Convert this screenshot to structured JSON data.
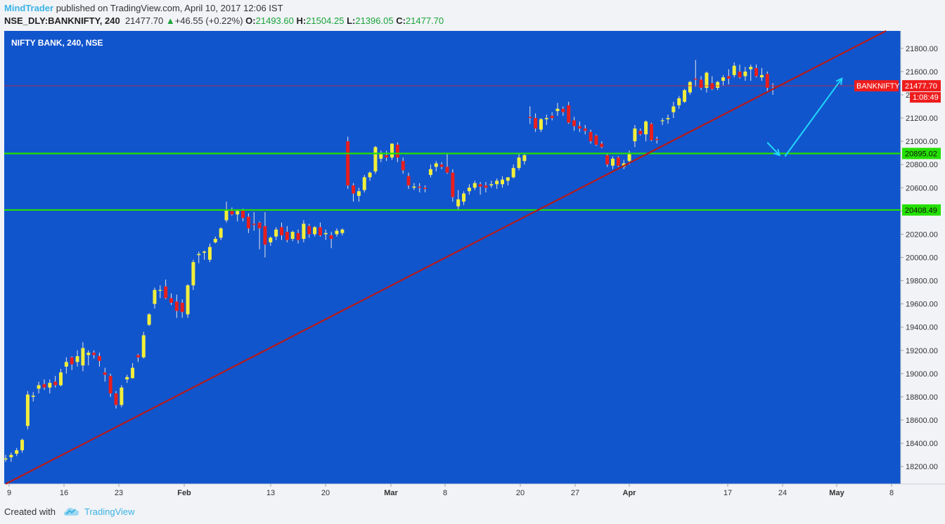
{
  "header": {
    "author": "MindTrader",
    "published_text": "published on TradingView.com, April 10, 2017 12:06 IST",
    "symbol": "NSE_DLY:BANKNIFTY, 240",
    "last": "21477.70",
    "change": "+46.55 (+0.22%)",
    "o_label": "O:",
    "o_value": "21493.60",
    "h_label": "H:",
    "h_value": "21504.25",
    "l_label": "L:",
    "l_value": "21396.05",
    "c_label": "C:",
    "c_value": "21477.70"
  },
  "chart_data": {
    "type": "candlestick",
    "title": "NIFTY BANK, 240, NSE",
    "ylim": [
      18050,
      21950
    ],
    "y_ticks": [
      "21800.00",
      "21600.00",
      "21400.00",
      "21200.00",
      "21000.00",
      "20800.00",
      "20600.00",
      "20400.00",
      "20200.00",
      "20000.00",
      "19800.00",
      "19600.00",
      "19400.00",
      "19200.00",
      "19000.00",
      "18800.00",
      "18600.00",
      "18400.00",
      "18200.00"
    ],
    "x_ticks": [
      "9",
      "16",
      "23",
      "Feb",
      "13",
      "20",
      "Mar",
      "8",
      "20",
      "27",
      "Apr",
      "17",
      "24",
      "May",
      "8"
    ],
    "candles": [
      [
        18260,
        18300,
        18240,
        18270
      ],
      [
        18280,
        18320,
        18240,
        18300
      ],
      [
        18310,
        18360,
        18290,
        18340
      ],
      [
        18340,
        18440,
        18320,
        18430
      ],
      [
        18550,
        18850,
        18520,
        18820
      ],
      [
        18800,
        18840,
        18760,
        18810
      ],
      [
        18870,
        18930,
        18830,
        18900
      ],
      [
        18910,
        18950,
        18860,
        18880
      ],
      [
        18880,
        18950,
        18830,
        18920
      ],
      [
        18930,
        18980,
        18880,
        18900
      ],
      [
        18900,
        19040,
        18890,
        19010
      ],
      [
        19060,
        19140,
        19000,
        19100
      ],
      [
        19140,
        19150,
        19030,
        19080
      ],
      [
        19100,
        19200,
        19060,
        19150
      ],
      [
        19070,
        19270,
        19020,
        19220
      ],
      [
        19160,
        19200,
        19070,
        19180
      ],
      [
        19180,
        19200,
        19130,
        19160
      ],
      [
        19150,
        19180,
        19060,
        19110
      ],
      [
        19010,
        19050,
        18930,
        18990
      ],
      [
        18980,
        19000,
        18800,
        18830
      ],
      [
        18830,
        18850,
        18700,
        18730
      ],
      [
        18730,
        18900,
        18710,
        18880
      ],
      [
        18950,
        18990,
        18920,
        18970
      ],
      [
        18960,
        19090,
        18960,
        19050
      ],
      [
        19160,
        19170,
        19100,
        19140
      ],
      [
        19140,
        19360,
        19130,
        19330
      ],
      [
        19420,
        19520,
        19410,
        19510
      ],
      [
        19600,
        19740,
        19560,
        19720
      ],
      [
        19720,
        19760,
        19650,
        19720
      ],
      [
        19750,
        19810,
        19640,
        19650
      ],
      [
        19650,
        19690,
        19590,
        19610
      ],
      [
        19620,
        19680,
        19480,
        19540
      ],
      [
        19610,
        19640,
        19480,
        19530
      ],
      [
        19510,
        19770,
        19480,
        19760
      ],
      [
        19760,
        19980,
        19720,
        19960
      ],
      [
        20020,
        20050,
        19950,
        20030
      ],
      [
        20040,
        20060,
        19980,
        20050
      ],
      [
        19980,
        20120,
        19960,
        20090
      ],
      [
        20130,
        20180,
        20120,
        20160
      ],
      [
        20170,
        20260,
        20150,
        20250
      ],
      [
        20320,
        20480,
        20300,
        20410
      ],
      [
        20400,
        20430,
        20360,
        20370
      ],
      [
        20370,
        20410,
        20310,
        20400
      ],
      [
        20410,
        20420,
        20310,
        20340
      ],
      [
        20350,
        20380,
        20210,
        20250
      ],
      [
        20290,
        20390,
        20230,
        20280
      ],
      [
        20300,
        20310,
        20070,
        20250
      ],
      [
        20270,
        20390,
        20000,
        20110
      ],
      [
        20130,
        20180,
        20100,
        20170
      ],
      [
        20180,
        20260,
        20150,
        20240
      ],
      [
        20260,
        20300,
        20150,
        20190
      ],
      [
        20220,
        20270,
        20130,
        20150
      ],
      [
        20160,
        20230,
        20140,
        20220
      ],
      [
        20210,
        20240,
        20120,
        20150
      ],
      [
        20160,
        20320,
        20130,
        20290
      ],
      [
        20270,
        20290,
        20170,
        20200
      ],
      [
        20200,
        20270,
        20180,
        20260
      ],
      [
        20260,
        20300,
        20180,
        20190
      ],
      [
        20200,
        20240,
        20150,
        20210
      ],
      [
        20190,
        20220,
        20080,
        20160
      ],
      [
        20200,
        20250,
        20180,
        20230
      ],
      [
        20210,
        20250,
        20190,
        20240
      ],
      [
        21000,
        21040,
        20590,
        20620
      ],
      [
        20620,
        20640,
        20480,
        20550
      ],
      [
        20530,
        20600,
        20480,
        20570
      ],
      [
        20580,
        20710,
        20560,
        20690
      ],
      [
        20690,
        20740,
        20660,
        20730
      ],
      [
        20740,
        20960,
        20720,
        20950
      ],
      [
        20850,
        20920,
        20820,
        20900
      ],
      [
        20880,
        20920,
        20830,
        20860
      ],
      [
        20860,
        20980,
        20840,
        20980
      ],
      [
        20970,
        20990,
        20820,
        20860
      ],
      [
        20830,
        20860,
        20720,
        20750
      ],
      [
        20700,
        20730,
        20590,
        20620
      ],
      [
        20600,
        20640,
        20580,
        20610
      ],
      [
        20610,
        20640,
        20560,
        20600
      ],
      [
        20600,
        20620,
        20560,
        20590
      ],
      [
        20710,
        20800,
        20690,
        20760
      ],
      [
        20780,
        20830,
        20740,
        20810
      ],
      [
        20800,
        20820,
        20760,
        20780
      ],
      [
        20780,
        20900,
        20720,
        20730
      ],
      [
        20730,
        20760,
        20480,
        20520
      ],
      [
        20440,
        20580,
        20410,
        20500
      ],
      [
        20480,
        20570,
        20450,
        20550
      ],
      [
        20570,
        20630,
        20540,
        20600
      ],
      [
        20600,
        20660,
        20580,
        20640
      ],
      [
        20630,
        20650,
        20540,
        20610
      ],
      [
        20620,
        20650,
        20560,
        20600
      ],
      [
        20620,
        20660,
        20600,
        20630
      ],
      [
        20630,
        20680,
        20590,
        20660
      ],
      [
        20630,
        20700,
        20600,
        20670
      ],
      [
        20660,
        20690,
        20620,
        20690
      ],
      [
        20690,
        20800,
        20680,
        20770
      ],
      [
        20770,
        20890,
        20750,
        20860
      ],
      [
        20830,
        20890,
        20800,
        20880
      ],
      [
        21210,
        21300,
        21150,
        21200
      ],
      [
        21200,
        21240,
        21080,
        21110
      ],
      [
        21100,
        21200,
        21080,
        21190
      ],
      [
        21190,
        21230,
        21140,
        21200
      ],
      [
        21220,
        21250,
        21180,
        21200
      ],
      [
        21260,
        21330,
        21220,
        21280
      ],
      [
        21280,
        21300,
        21220,
        21250
      ],
      [
        21310,
        21340,
        21150,
        21160
      ],
      [
        21180,
        21210,
        21090,
        21130
      ],
      [
        21130,
        21170,
        21080,
        21110
      ],
      [
        21110,
        21140,
        21060,
        21090
      ],
      [
        21080,
        21100,
        20980,
        21000
      ],
      [
        21050,
        21060,
        20960,
        20970
      ],
      [
        20980,
        21000,
        20940,
        20950
      ],
      [
        20880,
        20900,
        20780,
        20800
      ],
      [
        20790,
        20870,
        20760,
        20850
      ],
      [
        20860,
        20870,
        20780,
        20790
      ],
      [
        20780,
        20840,
        20760,
        20810
      ],
      [
        20830,
        20920,
        20800,
        20890
      ],
      [
        21000,
        21140,
        20950,
        21110
      ],
      [
        21090,
        21110,
        21050,
        21060
      ],
      [
        21060,
        21180,
        21000,
        21170
      ],
      [
        21150,
        21160,
        21000,
        21010
      ],
      [
        21020,
        21040,
        20980,
        21010
      ],
      [
        21180,
        21200,
        21140,
        21180
      ],
      [
        21190,
        21230,
        21150,
        21200
      ],
      [
        21250,
        21340,
        21200,
        21300
      ],
      [
        21310,
        21390,
        21280,
        21370
      ],
      [
        21340,
        21450,
        21330,
        21440
      ],
      [
        21420,
        21520,
        21400,
        21510
      ],
      [
        21540,
        21700,
        21470,
        21530
      ],
      [
        21530,
        21560,
        21440,
        21460
      ],
      [
        21460,
        21600,
        21420,
        21590
      ],
      [
        21500,
        21560,
        21440,
        21450
      ],
      [
        21460,
        21520,
        21440,
        21510
      ],
      [
        21520,
        21570,
        21480,
        21550
      ],
      [
        21560,
        21620,
        21490,
        21540
      ],
      [
        21570,
        21680,
        21550,
        21650
      ],
      [
        21600,
        21660,
        21540,
        21550
      ],
      [
        21560,
        21640,
        21520,
        21600
      ],
      [
        21620,
        21660,
        21520,
        21640
      ],
      [
        21630,
        21660,
        21550,
        21560
      ],
      [
        21550,
        21630,
        21520,
        21570
      ],
      [
        21580,
        21600,
        21430,
        21460
      ],
      [
        21480,
        21500,
        21400,
        21478
      ]
    ],
    "trend_line": {
      "from": [
        0,
        18050
      ],
      "to": [
        159.5,
        21950
      ]
    },
    "horizontal_levels": [
      {
        "value": 20895.02,
        "label": "20895.02",
        "color": "#24e000"
      },
      {
        "value": 20408.49,
        "label": "20408.49",
        "color": "#24e000"
      },
      {
        "value": 21477.7,
        "label": "21477.70",
        "color": "#ee1c1c"
      }
    ],
    "price_tag": {
      "symbol": "BANKNIFTY",
      "value": "21477.70",
      "timer": "1:08:49"
    },
    "arrows": [
      {
        "from": [
          138,
          20990
        ],
        "to": [
          140.2,
          20880
        ]
      },
      {
        "from": [
          141.2,
          20870
        ],
        "to": [
          151.5,
          21540
        ]
      }
    ],
    "colors": {
      "background": "#1155cc",
      "up": "#f2ee3a",
      "down": "#e81e1e",
      "trend": "#b51a1a",
      "arrow": "#20d8ff"
    }
  },
  "footer": {
    "created": "Created with",
    "brand": "TradingView"
  }
}
